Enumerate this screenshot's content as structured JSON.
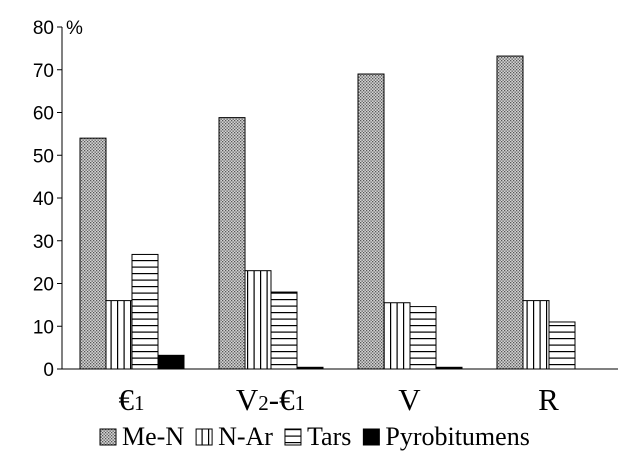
{
  "chart_data": {
    "type": "bar",
    "title": "",
    "xlabel": "",
    "ylabel": "%",
    "ylim": [
      0,
      80
    ],
    "yticks": [
      0,
      10,
      20,
      30,
      40,
      50,
      60,
      70,
      80
    ],
    "grid": false,
    "legend_position": "bottom",
    "categories": [
      {
        "main": "€",
        "sub": "1",
        "tail": ""
      },
      {
        "main": "V",
        "sub": "2",
        "tail": "-€",
        "sub2": "1"
      },
      {
        "main": "V",
        "sub": "",
        "tail": ""
      },
      {
        "main": "R",
        "sub": "",
        "tail": ""
      }
    ],
    "series": [
      {
        "name": "Me-N",
        "pattern": "dots",
        "values": [
          54,
          58.8,
          69,
          73.2
        ]
      },
      {
        "name": "N-Ar",
        "pattern": "vertical",
        "values": [
          16,
          23,
          15.5,
          16
        ]
      },
      {
        "name": "Tars",
        "pattern": "horizontal",
        "values": [
          26.8,
          18,
          14.6,
          11
        ]
      },
      {
        "name": "Pyrobitumens",
        "pattern": "solid",
        "values": [
          3.2,
          0.4,
          0.4,
          0
        ]
      }
    ]
  }
}
